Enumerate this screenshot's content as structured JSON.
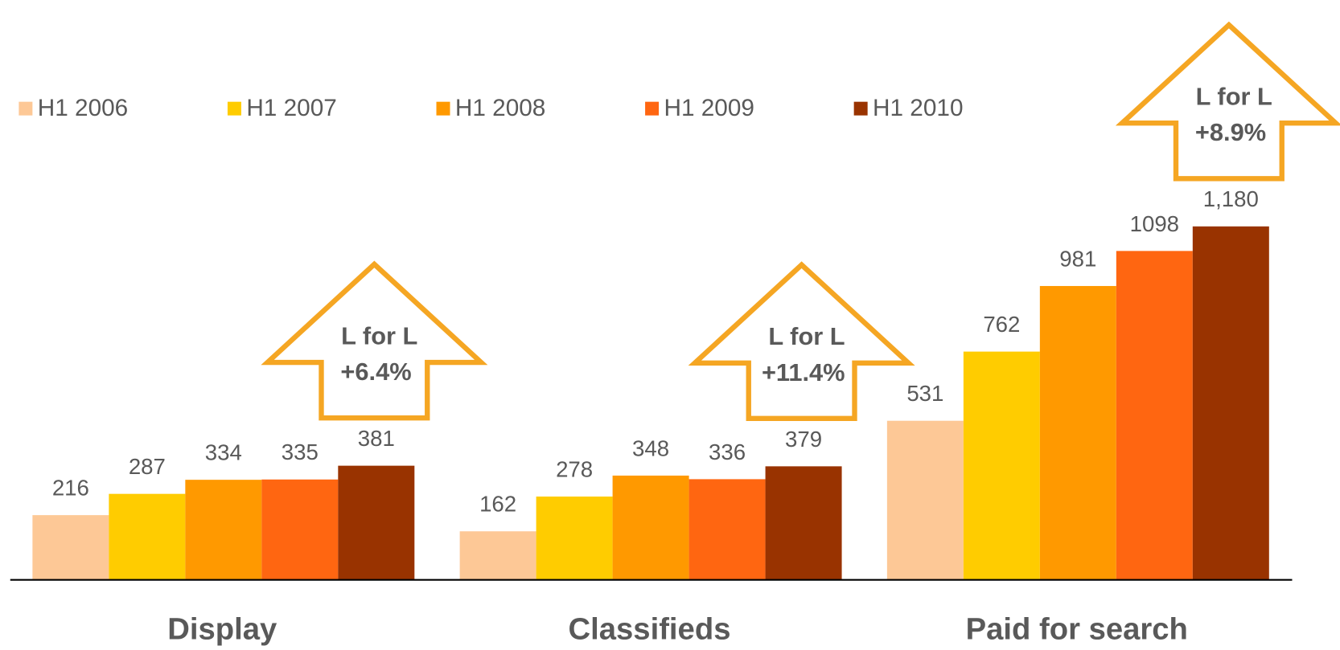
{
  "chart_data": {
    "type": "bar",
    "categories": [
      "Display",
      "Classifieds",
      "Paid for search"
    ],
    "series": [
      {
        "name": "H1 2006",
        "color": "#FDC896",
        "values": [
          216,
          162,
          531
        ]
      },
      {
        "name": "H1 2007",
        "color": "#FFCC00",
        "values": [
          287,
          278,
          762
        ]
      },
      {
        "name": "H1 2008",
        "color": "#FF9900",
        "values": [
          334,
          348,
          981
        ]
      },
      {
        "name": "H1 2009",
        "color": "#FF6611",
        "values": [
          335,
          336,
          1098
        ]
      },
      {
        "name": "H1 2010",
        "color": "#993300",
        "values": [
          381,
          379,
          1180
        ],
        "value_labels": [
          "381",
          "379",
          "1,180"
        ]
      }
    ],
    "annotations": [
      {
        "text": "L for L",
        "change": "+6.4%",
        "color": "#F5A623"
      },
      {
        "text": "L for L",
        "change": "+11.4%",
        "color": "#F5A623"
      },
      {
        "text": "L for L",
        "change": "+8.9%",
        "color": "#F5A623"
      }
    ]
  }
}
